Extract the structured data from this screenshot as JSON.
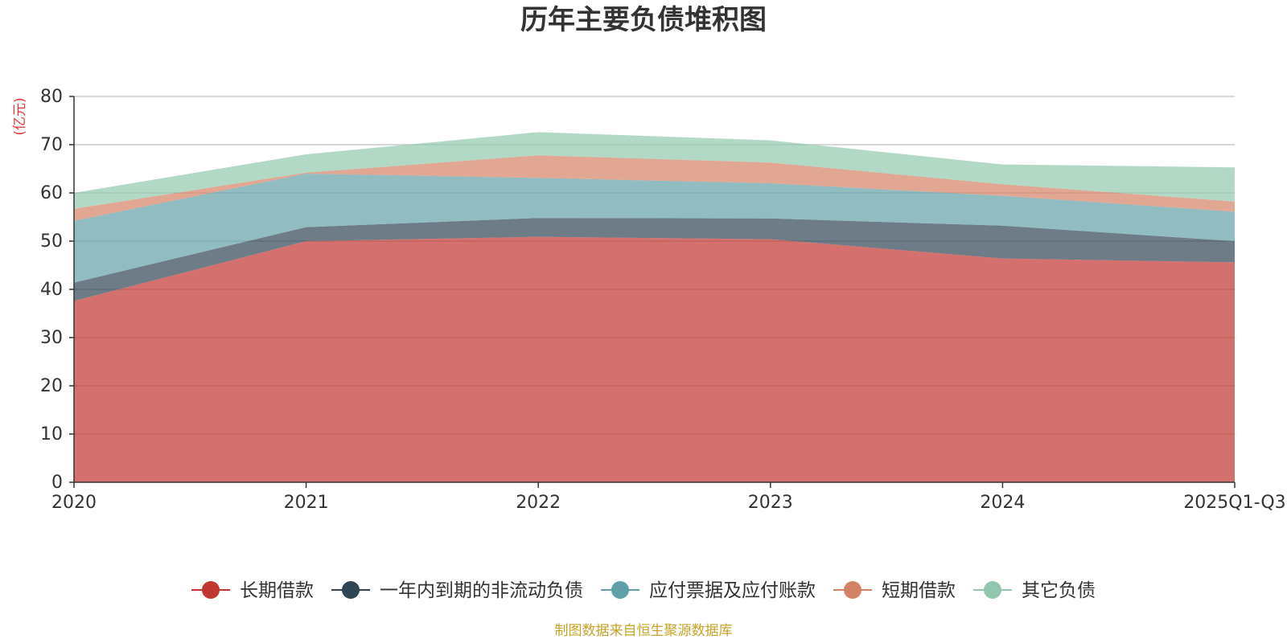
{
  "colors": {
    "text": "#333333",
    "axis": "#333333",
    "grid": "#cccccc",
    "unit": "#e53935",
    "source": "#c9a227"
  },
  "chart_data": {
    "type": "area",
    "stacked": true,
    "title": "历年主要负债堆积图",
    "ylabel": "(亿元)",
    "xlabel": "",
    "ylim": [
      0,
      80
    ],
    "yticks": [
      0,
      10,
      20,
      30,
      40,
      50,
      60,
      70,
      80
    ],
    "categories": [
      "2020",
      "2021",
      "2022",
      "2023",
      "2024",
      "2025Q1-Q3"
    ],
    "grid": true,
    "legend_position": "bottom",
    "series": [
      {
        "name": "长期借款",
        "color": "#c23531",
        "values": [
          37.6,
          50.0,
          50.9,
          50.4,
          46.4,
          45.6
        ]
      },
      {
        "name": "一年内到期的非流动负债",
        "color": "#2f4554",
        "values": [
          3.8,
          2.9,
          3.9,
          4.3,
          6.8,
          4.4
        ]
      },
      {
        "name": "应付票据及应付账款",
        "color": "#61a0a8",
        "values": [
          12.8,
          11.1,
          8.3,
          7.3,
          6.2,
          6.1
        ]
      },
      {
        "name": "短期借款",
        "color": "#d48265",
        "values": [
          2.5,
          0.2,
          4.7,
          4.3,
          2.4,
          2.1
        ]
      },
      {
        "name": "其它负债",
        "color": "#91c7ae",
        "values": [
          3.3,
          3.8,
          4.8,
          4.6,
          4.1,
          7.1
        ]
      }
    ],
    "source": "制图数据来自恒生聚源数据库"
  }
}
